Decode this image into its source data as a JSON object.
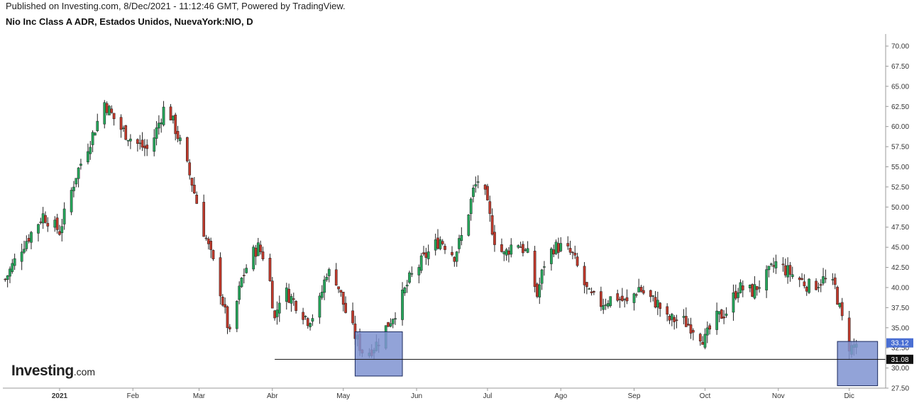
{
  "header": {
    "published": "Published on Investing.com, 8/Dec/2021 - 11:12:46 GMT, Powered by TradingView.",
    "title": "Nio Inc Class A ADR, Estados Unidos, NuevaYork:NIO, D"
  },
  "logo": {
    "word": "Investing",
    "suffix": ".com"
  },
  "colors": {
    "up": "#26a65b",
    "down": "#c0392b",
    "box_fill": "#7f93d1",
    "box_stroke": "#1b2a5e",
    "last_price_bg": "#4a6fd3",
    "level_bg": "#111111"
  },
  "chart_data": {
    "type": "candlestick",
    "ylim": [
      27.5,
      71.5
    ],
    "y_ticks": [
      "70.00",
      "67.50",
      "65.00",
      "62.50",
      "60.00",
      "57.50",
      "55.00",
      "52.50",
      "50.00",
      "47.50",
      "45.00",
      "42.50",
      "40.00",
      "37.50",
      "35.00",
      "32.50",
      "30.00",
      "27.50"
    ],
    "x_ticks": [
      {
        "label": "2021",
        "bold": true,
        "day": 9
      },
      {
        "label": "Feb",
        "bold": false,
        "day": 40
      },
      {
        "label": "Mar",
        "bold": false,
        "day": 68
      },
      {
        "label": "Abr",
        "bold": false,
        "day": 99
      },
      {
        "label": "May",
        "bold": false,
        "day": 129
      },
      {
        "label": "Jun",
        "bold": false,
        "day": 160
      },
      {
        "label": "Jul",
        "bold": false,
        "day": 190
      },
      {
        "label": "Ago",
        "bold": false,
        "day": 221
      },
      {
        "label": "Sep",
        "bold": false,
        "day": 252
      },
      {
        "label": "Oct",
        "bold": false,
        "day": 282
      },
      {
        "label": "Nov",
        "bold": false,
        "day": 313
      },
      {
        "label": "Dic",
        "bold": false,
        "day": 343
      }
    ],
    "x_range_days": [
      -15,
      356
    ],
    "anchors": [
      [
        -14,
        41
      ],
      [
        -7,
        45
      ],
      [
        2,
        49
      ],
      [
        9,
        47
      ],
      [
        16,
        54
      ],
      [
        23,
        59
      ],
      [
        28,
        63
      ],
      [
        34,
        60
      ],
      [
        41,
        58
      ],
      [
        47,
        57
      ],
      [
        54,
        63
      ],
      [
        60,
        58
      ],
      [
        65,
        53
      ],
      [
        70,
        47
      ],
      [
        76,
        41
      ],
      [
        81,
        34
      ],
      [
        86,
        41
      ],
      [
        90,
        44
      ],
      [
        93,
        45
      ],
      [
        97,
        43
      ],
      [
        100,
        36
      ],
      [
        103,
        40
      ],
      [
        109,
        38
      ],
      [
        114,
        36
      ],
      [
        118,
        37
      ],
      [
        122,
        42
      ],
      [
        126,
        41
      ],
      [
        130,
        37
      ],
      [
        134,
        34
      ],
      [
        138,
        31.5
      ],
      [
        143,
        33
      ],
      [
        147,
        35
      ],
      [
        152,
        37.5
      ],
      [
        157,
        41
      ],
      [
        164,
        44
      ],
      [
        170,
        46
      ],
      [
        176,
        44
      ],
      [
        180,
        47
      ],
      [
        184,
        52
      ],
      [
        187,
        54
      ],
      [
        190,
        50
      ],
      [
        193,
        46
      ],
      [
        197,
        44
      ],
      [
        202,
        46
      ],
      [
        207,
        44
      ],
      [
        211,
        39
      ],
      [
        214,
        43
      ],
      [
        218,
        45
      ],
      [
        222,
        45
      ],
      [
        226,
        44
      ],
      [
        230,
        41
      ],
      [
        233,
        39
      ],
      [
        238,
        38
      ],
      [
        244,
        39
      ],
      [
        249,
        38
      ],
      [
        254,
        40
      ],
      [
        257,
        39
      ],
      [
        262,
        38
      ],
      [
        266,
        36
      ],
      [
        272,
        36
      ],
      [
        277,
        35
      ],
      [
        282,
        33.5
      ],
      [
        286,
        36
      ],
      [
        291,
        37
      ],
      [
        296,
        40
      ],
      [
        302,
        39.5
      ],
      [
        307,
        41
      ],
      [
        312,
        43
      ],
      [
        317,
        42
      ],
      [
        322,
        41
      ],
      [
        327,
        40
      ],
      [
        332,
        41
      ],
      [
        337,
        40
      ],
      [
        340,
        36
      ],
      [
        342,
        33
      ],
      [
        344,
        32.5
      ],
      [
        346,
        33
      ]
    ],
    "support_level": 31.08,
    "support_start_day": 100,
    "last_price": 33.12,
    "labels": {
      "last_price": "33.12",
      "support": "31.08"
    },
    "zones": [
      {
        "name": "may-zone",
        "day_start": 134,
        "day_end": 154,
        "y_low": 29.0,
        "y_high": 34.5
      },
      {
        "name": "dec-zone",
        "day_start": 338,
        "day_end": 355,
        "y_low": 27.8,
        "y_high": 33.3
      }
    ]
  }
}
